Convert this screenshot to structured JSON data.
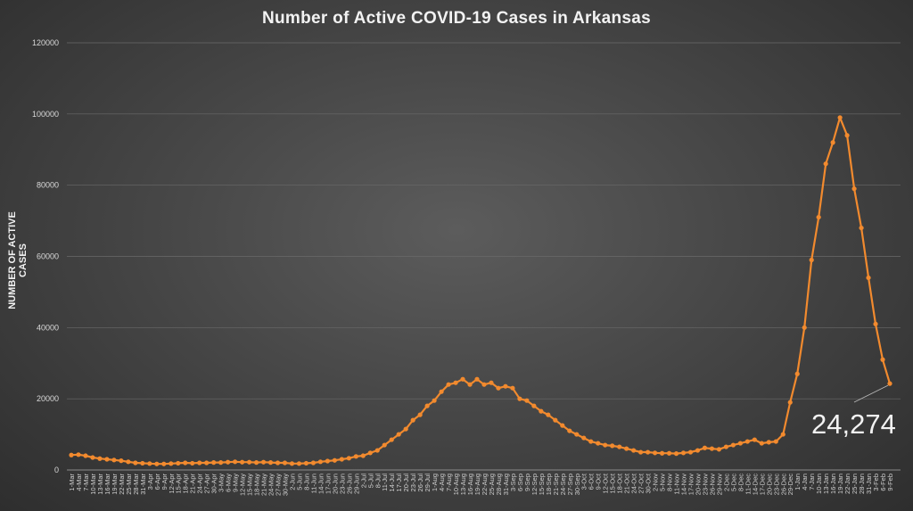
{
  "chart_data": {
    "type": "line",
    "title": "Number of Active COVID-19 Cases in Arkansas",
    "xlabel": "",
    "ylabel": "NUMBER OF ACTIVE CASES",
    "ylim": [
      0,
      120000
    ],
    "yticks": [
      "0",
      "20000",
      "40000",
      "60000",
      "80000",
      "100000",
      "120000"
    ],
    "grid": true,
    "legend": "none",
    "series_color": "#f28a2e",
    "annotation": "24,274",
    "categories": [
      "1-Mar",
      "4-Mar",
      "7-Mar",
      "10-Mar",
      "13-Mar",
      "16-Mar",
      "19-Mar",
      "22-Mar",
      "25-Mar",
      "28-Mar",
      "31-Mar",
      "3-Apr",
      "6-Apr",
      "9-Apr",
      "12-Apr",
      "15-Apr",
      "18-Apr",
      "21-Apr",
      "24-Apr",
      "27-Apr",
      "30-Apr",
      "3-May",
      "6-May",
      "9-May",
      "12-May",
      "15-May",
      "18-May",
      "21-May",
      "24-May",
      "27-May",
      "30-May",
      "2-Jun",
      "5-Jun",
      "8-Jun",
      "11-Jun",
      "14-Jun",
      "17-Jun",
      "20-Jun",
      "23-Jun",
      "26-Jun",
      "29-Jun",
      "2-Jul",
      "5-Jul",
      "8-Jul",
      "11-Jul",
      "14-Jul",
      "17-Jul",
      "20-Jul",
      "23-Jul",
      "26-Jul",
      "29-Jul",
      "1-Aug",
      "4-Aug",
      "7-Aug",
      "10-Aug",
      "13-Aug",
      "16-Aug",
      "19-Aug",
      "22-Aug",
      "25-Aug",
      "28-Aug",
      "31-Aug",
      "3-Sep",
      "6-Sep",
      "9-Sep",
      "12-Sep",
      "15-Sep",
      "18-Sep",
      "21-Sep",
      "24-Sep",
      "27-Sep",
      "30-Sep",
      "3-Oct",
      "6-Oct",
      "9-Oct",
      "12-Oct",
      "15-Oct",
      "18-Oct",
      "21-Oct",
      "24-Oct",
      "27-Oct",
      "30-Oct",
      "2-Nov",
      "5-Nov",
      "8-Nov",
      "11-Nov",
      "14-Nov",
      "17-Nov",
      "20-Nov",
      "23-Nov",
      "26-Nov",
      "29-Nov",
      "2-Dec",
      "5-Dec",
      "8-Dec",
      "11-Dec",
      "14-Dec",
      "17-Dec",
      "20-Dec",
      "23-Dec",
      "26-Dec",
      "29-Dec",
      "1-Jan",
      "4-Jan",
      "7-Jan",
      "10-Jan",
      "13-Jan",
      "16-Jan",
      "19-Jan",
      "22-Jan",
      "25-Jan",
      "28-Jan",
      "31-Jan",
      "3-Feb",
      "6-Feb",
      "9-Feb"
    ],
    "values": [
      4200,
      4300,
      4000,
      3500,
      3200,
      3000,
      2800,
      2600,
      2300,
      2000,
      1900,
      1800,
      1700,
      1700,
      1800,
      1900,
      2000,
      1900,
      2000,
      2000,
      2100,
      2100,
      2200,
      2300,
      2200,
      2200,
      2100,
      2200,
      2100,
      2000,
      2000,
      1800,
      1800,
      1900,
      2000,
      2300,
      2500,
      2700,
      3000,
      3300,
      3800,
      4000,
      4800,
      5500,
      7000,
      8500,
      10000,
      11500,
      14000,
      15500,
      18000,
      19500,
      22000,
      24000,
      24500,
      25500,
      24000,
      25500,
      24000,
      24500,
      23000,
      23500,
      23000,
      20000,
      19500,
      18000,
      16500,
      15500,
      14000,
      12500,
      11000,
      10000,
      9000,
      8000,
      7500,
      7000,
      6800,
      6500,
      6000,
      5500,
      5000,
      5000,
      4800,
      4700,
      4700,
      4600,
      4800,
      5000,
      5500,
      6200,
      6000,
      5800,
      6500,
      7000,
      7500,
      8000,
      8500,
      7500,
      7800,
      8000,
      10000,
      19000,
      27000,
      40000,
      59000,
      71000,
      86000,
      92000,
      99000,
      94000,
      79000,
      68000,
      54000,
      41000,
      31000,
      24274
    ]
  }
}
